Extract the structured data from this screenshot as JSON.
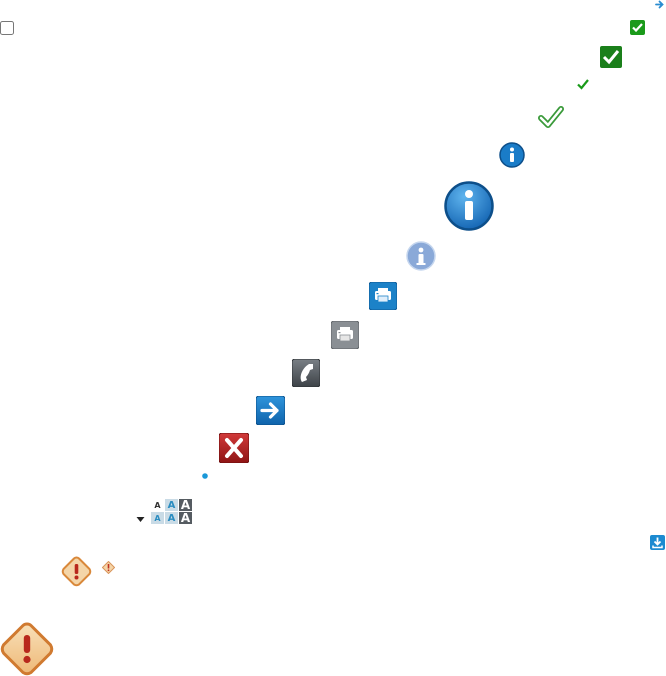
{
  "sprite": {
    "font_size_row_1": [
      "A",
      "A",
      "A"
    ],
    "font_size_row_2": [
      "A",
      "A",
      "A"
    ]
  },
  "colors": {
    "check_green": "#1a9a1a",
    "info_blue": "#1a7cc8",
    "info_light": "#8aa9d8",
    "print_blue": "#1c82c8",
    "grey_button": "#8a8f94",
    "dark_button": "#4f555b",
    "arrow_blue": "#1477c4",
    "close_red": "#b31e1e",
    "warning_orange": "#e0a060",
    "warning_fill": "#f4d5a8",
    "warning_mark": "#c03020"
  },
  "icons": [
    "arrow-right-small-icon",
    "checkbox-empty-icon",
    "check-square-small-icon",
    "check-square-medium-icon",
    "check-mark-small-icon",
    "check-outline-icon",
    "info-circle-icon",
    "info-circle-large-icon",
    "info-circle-light-icon",
    "print-blue-icon",
    "print-grey-icon",
    "phone-icon",
    "arrow-right-button-icon",
    "close-red-icon",
    "blue-dot-icon",
    "dropdown-arrow-icon",
    "download-icon",
    "warning-small-icon",
    "warning-medium-icon",
    "warning-large-icon"
  ]
}
